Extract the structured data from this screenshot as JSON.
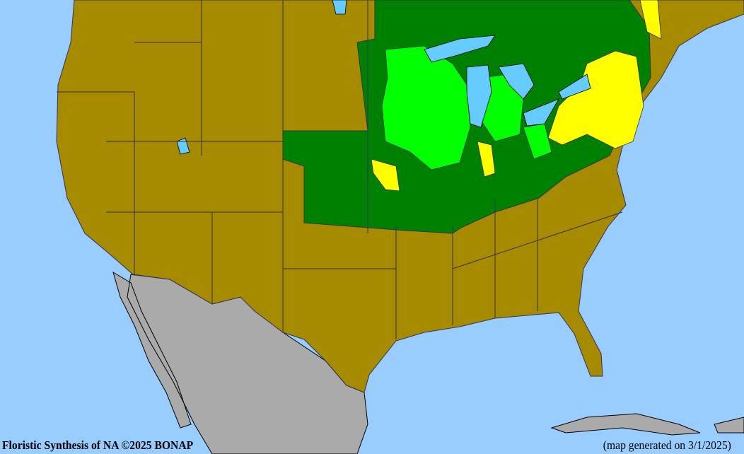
{
  "credit": "Floristic Synthesis of NA ©2025 BONAP",
  "generated": "(map generated on 3/1/2025)",
  "colors": {
    "ocean": "#99ccff",
    "lake": "#66ccff",
    "not_present": "#a68a00",
    "present_state": "#008000",
    "present_county": "#00ff00",
    "rare": "#ffff00",
    "outside_range": "#aaaaaa",
    "borders": "#333355"
  }
}
